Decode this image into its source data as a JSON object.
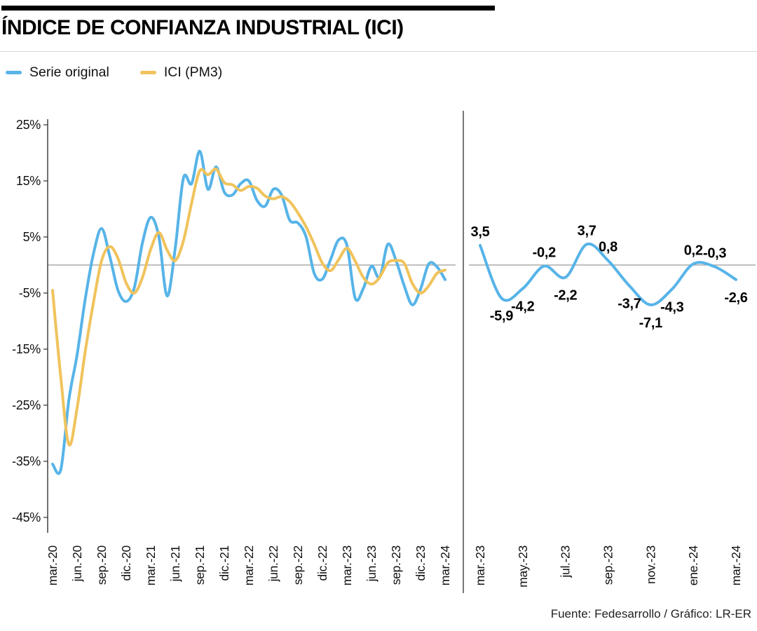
{
  "header": {
    "title": "ÍNDICE DE CONFIANZA INDUSTRIAL (ICI)"
  },
  "legend": [
    {
      "label": "Serie original",
      "color": "#57B4E8"
    },
    {
      "label": "ICI (PM3)",
      "color": "#F0C35C"
    }
  ],
  "footer": {
    "text": "Fuente: Fedesarrollo / Gráfico: LR-ER"
  },
  "chart_data": [
    {
      "id": "ici-historical",
      "type": "line",
      "title": "Índice de Confianza Industrial (ICI) mar.-20 a mar.-24",
      "ylim": [
        -45,
        25
      ],
      "grid": "zero-line-only",
      "y_tick_labels": [
        "25%",
        "15%",
        "5%",
        "-5%",
        "-15%",
        "-25%",
        "-35%",
        "-45%"
      ],
      "tick_every": 3,
      "x_tick_labels": [
        "mar.-20",
        "jun.-20",
        "sep.-20",
        "dic.-20",
        "mar.-21",
        "jun.-21",
        "sep.-21",
        "dic.-21",
        "mar.-22",
        "jun.-22",
        "sep.-22",
        "dic.-22",
        "mar.-23",
        "jun.-23",
        "sep.-23",
        "dic.-23",
        "mar.-24"
      ],
      "months": [
        "mar.-20",
        "abr.-20",
        "may.-20",
        "jun.-20",
        "jul.-20",
        "ago.-20",
        "sep.-20",
        "oct.-20",
        "nov.-20",
        "dic.-20",
        "ene.-21",
        "feb.-21",
        "mar.-21",
        "abr.-21",
        "may.-21",
        "jun.-21",
        "jul.-21",
        "ago.-21",
        "sep.-21",
        "oct.-21",
        "nov.-21",
        "dic.-21",
        "ene.-22",
        "feb.-22",
        "mar.-22",
        "abr.-22",
        "may.-22",
        "jun.-22",
        "jul.-22",
        "ago.-22",
        "sep.-22",
        "oct.-22",
        "nov.-22",
        "dic.-22",
        "ene.-23",
        "feb.-23",
        "mar.-23",
        "abr.-23",
        "may.-23",
        "jun.-23",
        "jul.-23",
        "ago.-23",
        "sep.-23",
        "oct.-23",
        "nov.-23",
        "dic.-23",
        "ene.-24",
        "feb.-24",
        "mar.-24"
      ],
      "series": [
        {
          "id": "serie-original",
          "name": "Serie original",
          "color": "#57B4E8",
          "values": [
            -35.5,
            -36.5,
            -24,
            -16,
            -6,
            2,
            6.5,
            1.5,
            -4.5,
            -6.5,
            -4,
            4,
            8.5,
            5,
            -5.5,
            3,
            15.5,
            14.5,
            20.3,
            13.5,
            17.5,
            13,
            12.5,
            14.5,
            15,
            11.5,
            10.5,
            13.5,
            12.5,
            8,
            7.5,
            5,
            -1.5,
            -2.5,
            1,
            4.5,
            3.5,
            -5.9,
            -4.2,
            -0.2,
            -2.2,
            3.7,
            0.8,
            -3.7,
            -7.1,
            -4.3,
            0.2,
            -0.3,
            -2.6
          ]
        },
        {
          "id": "ici-pm3",
          "name": "ICI (PM3)",
          "color": "#F0C35C",
          "values": [
            -4.5,
            -20,
            -32,
            -25.5,
            -15.3,
            -6.7,
            0.8,
            3.3,
            1.2,
            -3.2,
            -5,
            -2.2,
            2.8,
            5.8,
            2.7,
            0.8,
            4.3,
            11,
            16.8,
            16.1,
            17.1,
            14.7,
            14.3,
            13.3,
            14,
            13.7,
            12.3,
            11.8,
            12.2,
            11.3,
            9.3,
            6.8,
            3.7,
            0.3,
            -1,
            1,
            3,
            0.7,
            -2.2,
            -3.4,
            -2.2,
            0.4,
            0.8,
            0.3,
            -3.3,
            -5,
            -3.7,
            -1.5,
            -0.9
          ]
        }
      ]
    },
    {
      "id": "ici-detail",
      "type": "line",
      "title": "Detalle mar.-23 a mar.-24 (serie original)",
      "ylim": [
        -10,
        6
      ],
      "grid": "zero-line-only",
      "tick_every": 2,
      "x_tick_labels": [
        "mar.-23",
        "may.-23",
        "jul.-23",
        "sep.-23",
        "nov.-23",
        "ene.-24",
        "mar.-24"
      ],
      "months": [
        "mar.-23",
        "abr.-23",
        "may.-23",
        "jun.-23",
        "jul.-23",
        "ago.-23",
        "sep.-23",
        "oct.-23",
        "nov.-23",
        "dic.-23",
        "ene.-24",
        "feb.-24",
        "mar.-24"
      ],
      "series": [
        {
          "id": "serie-original-detalle",
          "name": "Serie original",
          "color": "#57B4E8",
          "values": [
            3.5,
            -5.9,
            -4.2,
            -0.2,
            -2.2,
            3.7,
            0.8,
            -3.7,
            -7.1,
            -4.3,
            0.2,
            -0.3,
            -2.6
          ]
        }
      ],
      "data_labels": [
        {
          "text": "3,5",
          "side": "above"
        },
        {
          "text": "-5,9",
          "side": "below"
        },
        {
          "text": "-4,2",
          "side": "below"
        },
        {
          "text": "-0,2",
          "side": "above"
        },
        {
          "text": "-2,2",
          "side": "below"
        },
        {
          "text": "3,7",
          "side": "above"
        },
        {
          "text": "0,8",
          "side": "above"
        },
        {
          "text": "-3,7",
          "side": "below"
        },
        {
          "text": "-7,1",
          "side": "below"
        },
        {
          "text": "-4,3",
          "side": "below"
        },
        {
          "text": "0,2",
          "side": "above"
        },
        {
          "text": "-0,3",
          "side": "above"
        },
        {
          "text": "-2,6",
          "side": "below"
        }
      ]
    }
  ]
}
